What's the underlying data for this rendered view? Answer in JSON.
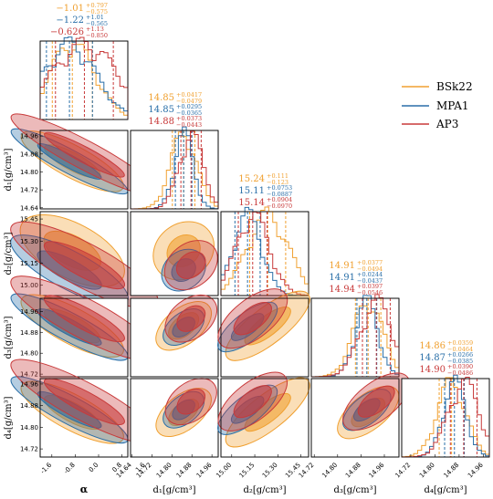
{
  "chart_data": {
    "type": "corner",
    "parameters": [
      {
        "key": "alpha",
        "label": "α",
        "range": [
          -2.0,
          1.0
        ],
        "ticks": [
          "-1.6",
          "-0.8",
          "0.0",
          "0.8",
          "1.6"
        ],
        "tick_values": [
          -1.6,
          -0.8,
          0.0,
          0.8,
          1.6
        ]
      },
      {
        "key": "d1",
        "label": "d₁[g/cm³]",
        "range": [
          14.635,
          14.985
        ],
        "ticks": [
          "14.64",
          "14.72",
          "14.80",
          "14.88",
          "14.96"
        ],
        "tick_values": [
          14.64,
          14.72,
          14.8,
          14.88,
          14.96
        ]
      },
      {
        "key": "d2",
        "label": "d₂[g/cm³]",
        "range": [
          14.93,
          15.5
        ],
        "ticks": [
          "15.00",
          "15.15",
          "15.30",
          "15.45"
        ],
        "tick_values": [
          15.0,
          15.15,
          15.3,
          15.45
        ]
      },
      {
        "key": "d3",
        "label": "d₃[g/cm³]",
        "range": [
          14.71,
          15.01
        ],
        "ticks": [
          "14.72",
          "14.80",
          "14.88",
          "14.96"
        ],
        "tick_values": [
          14.72,
          14.8,
          14.88,
          14.96
        ]
      },
      {
        "key": "d4",
        "label": "d₄[g/cm³]",
        "range": [
          14.69,
          14.98
        ],
        "ticks": [
          "14.72",
          "14.80",
          "14.88",
          "14.96"
        ],
        "tick_values": [
          14.72,
          14.8,
          14.88,
          14.96
        ]
      }
    ],
    "series": [
      {
        "name": "BSk22",
        "color": "#f0a030"
      },
      {
        "name": "MPA1",
        "color": "#2a6fa8"
      },
      {
        "name": "AP3",
        "color": "#c83a3a"
      }
    ],
    "summaries": [
      [
        {
          "median": "−1.01",
          "plus": "+0.797",
          "minus": "−0.575",
          "lo": -1.585,
          "hi": -0.213
        },
        {
          "median": "−1.22",
          "plus": "+1.01",
          "minus": "−0.565",
          "lo": -1.785,
          "hi": -0.21
        },
        {
          "median": "−0.626",
          "plus": "+1.13",
          "minus": "−0.850",
          "lo": -1.476,
          "hi": 0.504
        }
      ],
      [
        {
          "median": "14.85",
          "plus": "+0.0417",
          "minus": "−0.0479",
          "lo": 14.802,
          "hi": 14.892
        },
        {
          "median": "14.85",
          "plus": "+0.0295",
          "minus": "−0.0365",
          "lo": 14.814,
          "hi": 14.88
        },
        {
          "median": "14.88",
          "plus": "+0.0373",
          "minus": "−0.0443",
          "lo": 14.836,
          "hi": 14.917
        }
      ],
      [
        {
          "median": "15.24",
          "plus": "+0.111",
          "minus": "−0.123",
          "lo": 15.117,
          "hi": 15.351
        },
        {
          "median": "15.11",
          "plus": "+0.0753",
          "minus": "−0.0887",
          "lo": 15.021,
          "hi": 15.185
        },
        {
          "median": "15.14",
          "plus": "+0.0904",
          "minus": "−0.0970",
          "lo": 15.043,
          "hi": 15.23
        }
      ],
      [
        {
          "median": "14.91",
          "plus": "+0.0377",
          "minus": "−0.0494",
          "lo": 14.861,
          "hi": 14.948
        },
        {
          "median": "14.91",
          "plus": "+0.0244",
          "minus": "−0.0437",
          "lo": 14.866,
          "hi": 14.934
        },
        {
          "median": "14.94",
          "plus": "+0.0397",
          "minus": "−0.0546",
          "lo": 14.885,
          "hi": 14.98
        }
      ],
      [
        {
          "median": "14.86",
          "plus": "+0.0359",
          "minus": "−0.0464",
          "lo": 14.814,
          "hi": 14.896
        },
        {
          "median": "14.87",
          "plus": "+0.0266",
          "minus": "−0.0385",
          "lo": 14.832,
          "hi": 14.897
        },
        {
          "median": "14.90",
          "plus": "+0.0390",
          "minus": "−0.0486",
          "lo": 14.851,
          "hi": 14.939
        }
      ]
    ],
    "legend": {
      "placement": "top-right",
      "entries": [
        "BSk22",
        "MPA1",
        "AP3"
      ]
    },
    "grid": false
  }
}
